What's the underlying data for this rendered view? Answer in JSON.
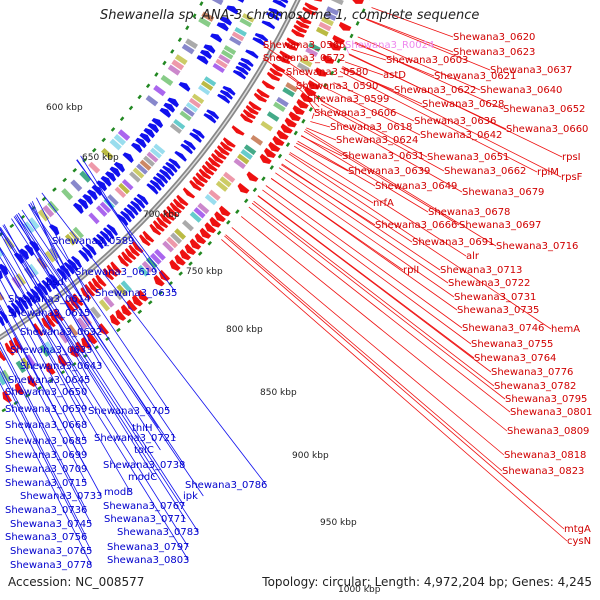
{
  "title": "Shewanella sp. ANA-3 chromosome 1, complete sequence",
  "footer": {
    "accession_label": "Accession:",
    "accession": "NC_008577",
    "topology_label": "Topology:",
    "topology": "circular;",
    "length_label": "Length:",
    "length": "4,972,204 bp;",
    "genes_label": "Genes:",
    "genes": "4,245"
  },
  "colors": {
    "forward_strand": "#ee1111",
    "reverse_strand": "#1111ee",
    "rna_label": "#ee88ee",
    "backbone": "#888888",
    "tick_marks": "#228822"
  },
  "ticks": [
    "600 kbp",
    "650 kbp",
    "700 kbp",
    "750 kbp",
    "800 kbp",
    "850 kbp",
    "900 kbp",
    "950 kbp",
    "1000 kbp"
  ],
  "right_labels": [
    "Shewana3_0566",
    "Shewana3_R0024",
    "Shewana3_0620",
    "Shewana3_0572",
    "Shewana3_0603",
    "Shewana3_0623",
    "Shewana3_0580",
    "astD",
    "Shewana3_0621",
    "Shewana3_0637",
    "Shewana3_0590",
    "Shewana3_0622",
    "Shewana3_0640",
    "Shewana3_0599",
    "Shewana3_0628",
    "Shewana3_0606",
    "Shewana3_0652",
    "Shewana3_0636",
    "Shewana3_0618",
    "Shewana3_0642",
    "Shewana3_0660",
    "Shewana3_0624",
    "Shewana3_0631",
    "Shewana3_0651",
    "rpsI",
    "Shewana3_0639",
    "Shewana3_0662",
    "rplM",
    "rpsF",
    "Shewana3_0649",
    "Shewana3_0679",
    "nrfA",
    "Shewana3_0678",
    "Shewana3_0666",
    "Shewana3_0697",
    "Shewana3_0691",
    "Shewana3_0716",
    "alr",
    "rplI",
    "Shewana3_0713",
    "Shewana3_0722",
    "Shewana3_0731",
    "Shewana3_0735",
    "Shewana3_0746",
    "hemA",
    "Shewana3_0755",
    "Shewana3_0764",
    "Shewana3_0776",
    "Shewana3_0782",
    "Shewana3_0795",
    "Shewana3_0801",
    "Shewana3_0809",
    "Shewana3_0818",
    "Shewana3_0823",
    "mtgA",
    "cysN"
  ],
  "left_labels": [
    "Shewana3_0589",
    "Shewana3_0619",
    "psd",
    "Shewana3_0635",
    "Shewana3_0614",
    "Shewana3_0615",
    "Shewana3_0632",
    "Shewana3_0633",
    "Shewana3_0643",
    "Shewana3_0645",
    "Shewana3_0650",
    "Shewana3_0659",
    "Shewana3_0705",
    "Shewana3_0668",
    "thiH",
    "Shewana3_0721",
    "Shewana3_0685",
    "tolC",
    "Shewana3_0699",
    "Shewana3_0738",
    "Shewana3_0709",
    "modC",
    "Shewana3_0715",
    "Shewana3_0786",
    "modB",
    "Shewana3_0733",
    "ipk",
    "Shewana3_0767",
    "Shewana3_0736",
    "Shewana3_0771",
    "Shewana3_0745",
    "Shewana3_0783",
    "Shewana3_0756",
    "Shewana3_0797",
    "Shewana3_0765",
    "Shewana3_0803",
    "Shewana3_0778"
  ]
}
